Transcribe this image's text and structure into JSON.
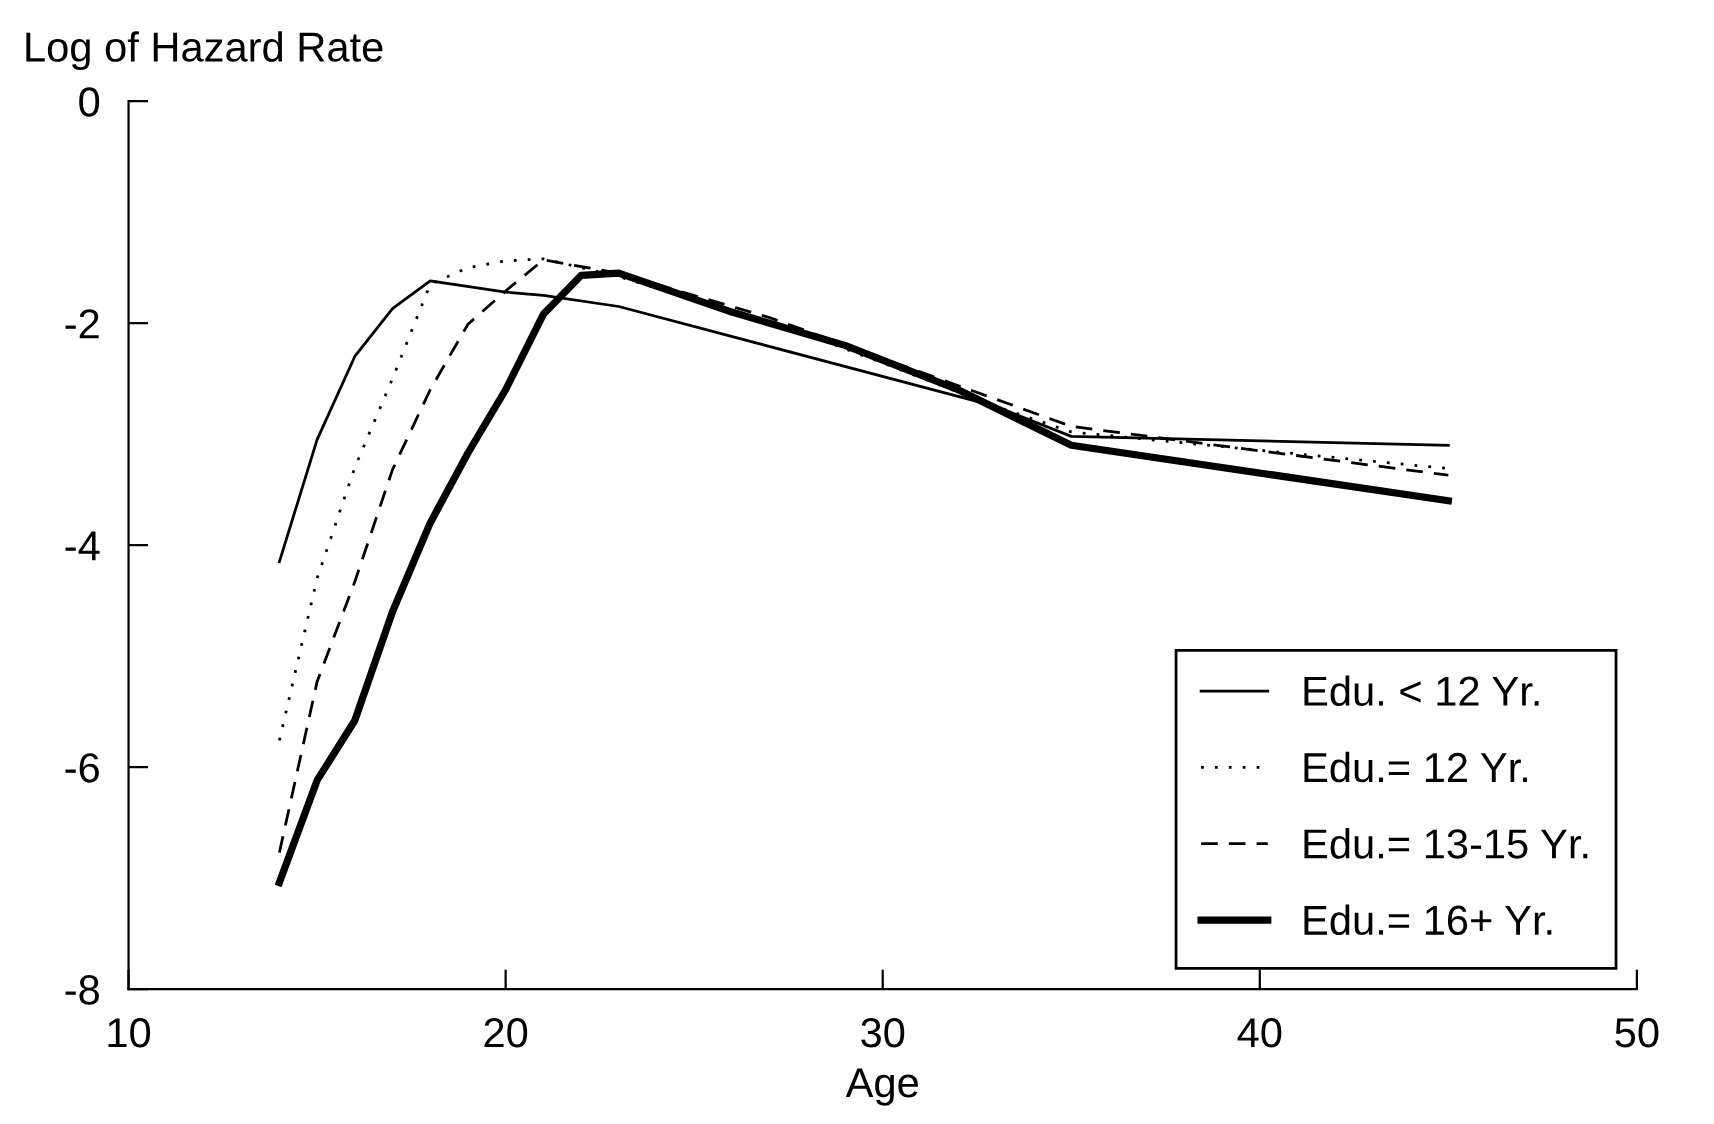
{
  "chart_data": {
    "type": "line",
    "ylabel": "Log of Hazard Rate",
    "xlabel": "Age",
    "xlim": [
      10,
      50
    ],
    "xticks": [
      10,
      20,
      30,
      40,
      50
    ],
    "ylim": [
      -8,
      0
    ],
    "yticks": [
      -8,
      -6,
      -4,
      -2,
      0
    ],
    "grid": false,
    "legend": "bottom right",
    "marker": "none",
    "series": [
      {
        "name": "Edu. < 12 Yr.",
        "color": "#000000",
        "line_style": "solid",
        "x": [
          14,
          15,
          16,
          17,
          18,
          20,
          21,
          23,
          33,
          35,
          45
        ],
        "values": [
          -4.15,
          -3.05,
          -2.3,
          -1.87,
          -1.62,
          -1.72,
          -1.75,
          -1.85,
          -2.75,
          -3.02,
          -3.1
        ]
      },
      {
        "name": "Edu.= 12 Yr.",
        "color": "#000000",
        "line_style": "dotted",
        "x": [
          14,
          15,
          16,
          17,
          18,
          19,
          20,
          21,
          22,
          23,
          28,
          33,
          35,
          45
        ],
        "values": [
          -5.76,
          -4.3,
          -3.3,
          -2.5,
          -1.65,
          -1.5,
          -1.44,
          -1.42,
          -1.5,
          -1.58,
          -2.1,
          -2.75,
          -2.98,
          -3.31
        ]
      },
      {
        "name": "Edu.= 13-15 Yr.",
        "color": "#000000",
        "line_style": "dashed",
        "x": [
          14,
          15,
          16,
          17,
          18,
          19,
          20,
          21,
          23,
          27,
          35,
          45
        ],
        "values": [
          -6.77,
          -5.23,
          -4.33,
          -3.32,
          -2.6,
          -2.01,
          -1.71,
          -1.43,
          -1.55,
          -1.95,
          -2.93,
          -3.37
        ]
      },
      {
        "name": "Edu.= 16+ Yr.",
        "color": "#000000",
        "line_style": "solid",
        "x": [
          14,
          15,
          16,
          17,
          18,
          19,
          20,
          21,
          22,
          23,
          26,
          29,
          32,
          35,
          45
        ],
        "values": [
          -7.04,
          -6.12,
          -5.58,
          -4.6,
          -3.8,
          -3.17,
          -2.6,
          -1.92,
          -1.57,
          -1.55,
          -1.9,
          -2.2,
          -2.6,
          -3.1,
          -3.6
        ]
      }
    ]
  }
}
